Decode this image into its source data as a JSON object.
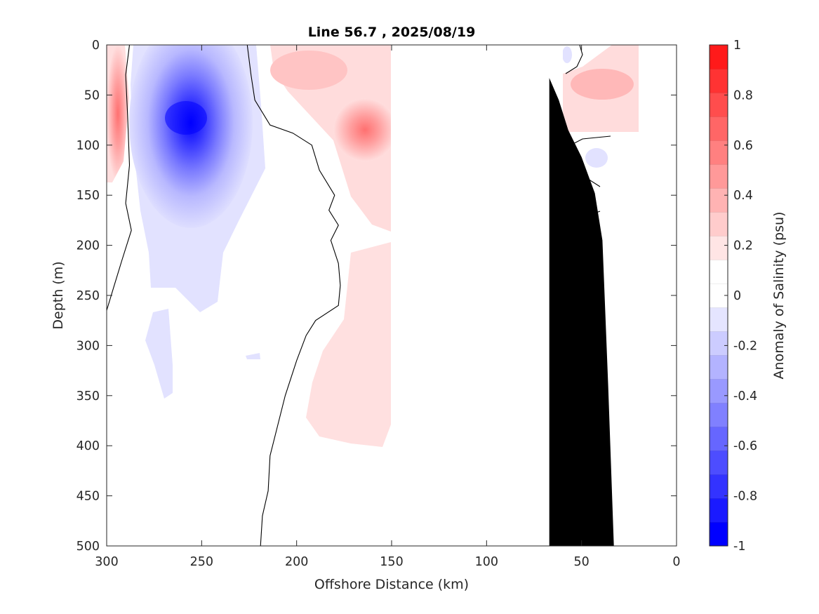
{
  "chart_data": {
    "type": "heatmap",
    "title": "Line 56.7 , 2025/08/19",
    "xlabel": "Offshore Distance (km)",
    "ylabel": "Depth (m)",
    "xlim": [
      300,
      0
    ],
    "ylim": [
      0,
      500
    ],
    "x_reversed": true,
    "y_reversed": true,
    "xticks": [
      300,
      250,
      200,
      150,
      100,
      50,
      0
    ],
    "xtick_labels": [
      "300",
      "250",
      "200",
      "150",
      "100",
      "50",
      "0"
    ],
    "yticks": [
      0,
      50,
      100,
      150,
      200,
      250,
      300,
      350,
      400,
      450,
      500
    ],
    "ytick_labels": [
      "0",
      "50",
      "100",
      "150",
      "200",
      "250",
      "300",
      "350",
      "400",
      "450",
      "500"
    ],
    "colorbar": {
      "label": "Anomaly of Salinity (psu)",
      "range": [
        -1,
        1
      ],
      "step": 0.1,
      "ticks": [
        1,
        0.8,
        0.6,
        0.4,
        0.2,
        0,
        -0.2,
        -0.4,
        -0.6,
        -0.8,
        -1
      ],
      "tick_labels": [
        "1",
        "0.8",
        "0.6",
        "0.4",
        "0.2",
        "0",
        "-0.2",
        "-0.4",
        "-0.6",
        "-0.8",
        "-1"
      ],
      "colors": [
        "#0000ff",
        "#1a1aff",
        "#3333ff",
        "#4d4dff",
        "#6666ff",
        "#8080ff",
        "#9999ff",
        "#b3b3ff",
        "#ccccff",
        "#e5e5ff",
        "#ffffff",
        "#ffffff",
        "#ffe5e5",
        "#ffcccc",
        "#ffb3b3",
        "#ff9999",
        "#ff8080",
        "#ff6666",
        "#ff4d4d",
        "#ff3333",
        "#ff1a1a"
      ]
    },
    "features": [
      {
        "name": "negative-anomaly-core",
        "center_x_km": 256,
        "center_depth_m": 78,
        "min_value": -0.8
      },
      {
        "name": "positive-anomaly-offshore-edge",
        "center_x_km": 298,
        "center_depth_m": 45,
        "max_value": 0.5
      },
      {
        "name": "positive-anomaly-mid",
        "center_x_km": 157,
        "center_depth_m": 80,
        "max_value": 0.4
      },
      {
        "name": "positive-anomaly-nearshore",
        "center_x_km": 38,
        "center_depth_m": 40,
        "max_value": 0.3
      }
    ],
    "no_data_gap_km": [
      150,
      60
    ],
    "bathymetry": [
      [
        33,
        500
      ],
      [
        36,
        340
      ],
      [
        39,
        195
      ],
      [
        43,
        148
      ],
      [
        50,
        112
      ],
      [
        57,
        85
      ],
      [
        62,
        55
      ],
      [
        67,
        33
      ],
      [
        67,
        500
      ]
    ],
    "zero_contours": [
      [
        [
          288,
          0
        ],
        [
          290,
          30
        ],
        [
          289,
          70
        ],
        [
          288,
          120
        ],
        [
          290,
          158
        ],
        [
          287,
          185
        ],
        [
          292,
          215
        ],
        [
          296,
          240
        ],
        [
          300,
          265
        ]
      ],
      [
        [
          226,
          0
        ],
        [
          224,
          30
        ],
        [
          222,
          55
        ],
        [
          214,
          80
        ],
        [
          202,
          88
        ],
        [
          192,
          100
        ],
        [
          188,
          125
        ],
        [
          180,
          150
        ],
        [
          183,
          165
        ],
        [
          178,
          180
        ],
        [
          182,
          195
        ],
        [
          178,
          218
        ],
        [
          177,
          240
        ],
        [
          178,
          260
        ],
        [
          190,
          275
        ],
        [
          195,
          290
        ],
        [
          200,
          315
        ],
        [
          206,
          350
        ],
        [
          210,
          380
        ],
        [
          214,
          410
        ],
        [
          215,
          445
        ],
        [
          218,
          470
        ],
        [
          219,
          500
        ]
      ]
    ]
  }
}
